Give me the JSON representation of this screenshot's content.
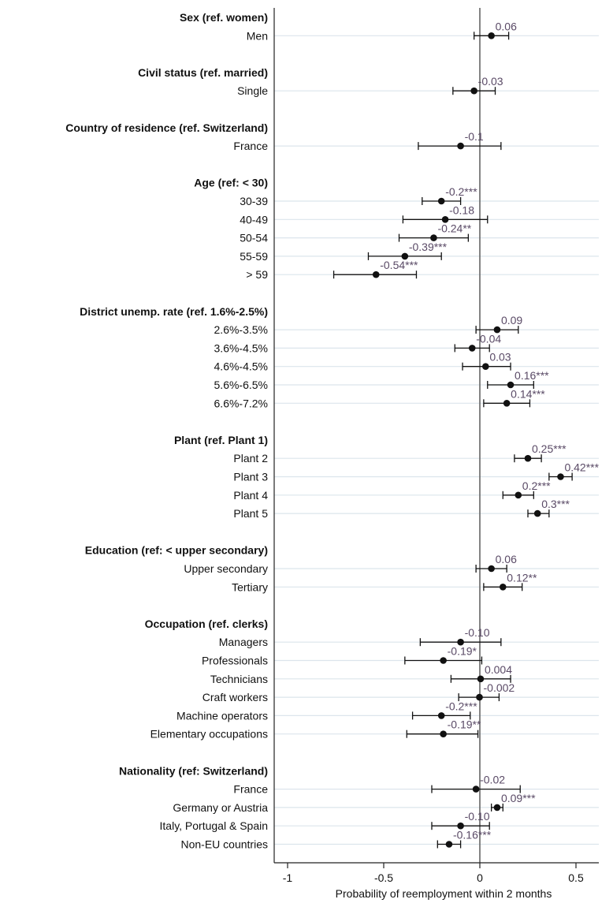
{
  "chart_data": {
    "type": "scatter",
    "subtype": "coefficient-plot-with-confidence-intervals",
    "title": "",
    "xlabel": "Probability of reemployment within 2 months",
    "ylabel": "",
    "xlim": [
      -1.1,
      0.57
    ],
    "xticks": [
      -1,
      -0.5,
      0,
      0.5
    ],
    "xtick_labels": [
      "-1",
      "-0.5",
      "0",
      "0.5"
    ],
    "reference_line_x": 0,
    "grid": "horizontal lines at each variable",
    "colors": {
      "point": "#111111",
      "value_label": "#5a4a66",
      "grid": "#dce5ec",
      "zero_line": "#666666"
    },
    "rows": [
      {
        "kind": "header",
        "label": "Sex (ref. women)"
      },
      {
        "kind": "var",
        "label": "Men",
        "value": 0.06,
        "lo": -0.03,
        "hi": 0.15,
        "text": "0.06"
      },
      {
        "kind": "gap"
      },
      {
        "kind": "header",
        "label": "Civil status (ref. married)"
      },
      {
        "kind": "var",
        "label": "Single",
        "value": -0.03,
        "lo": -0.14,
        "hi": 0.08,
        "text": "-0.03"
      },
      {
        "kind": "gap"
      },
      {
        "kind": "header",
        "label": "Country of residence (ref. Switzerland)"
      },
      {
        "kind": "var",
        "label": "France",
        "value": -0.1,
        "lo": -0.32,
        "hi": 0.11,
        "text": "-0.1"
      },
      {
        "kind": "gap"
      },
      {
        "kind": "header",
        "label": "Age (ref: < 30)"
      },
      {
        "kind": "var",
        "label": "30-39",
        "value": -0.2,
        "lo": -0.3,
        "hi": -0.1,
        "text": "-0.2***"
      },
      {
        "kind": "var",
        "label": "40-49",
        "value": -0.18,
        "lo": -0.4,
        "hi": 0.04,
        "text": "-0.18"
      },
      {
        "kind": "var",
        "label": "50-54",
        "value": -0.24,
        "lo": -0.42,
        "hi": -0.06,
        "text": "-0.24**"
      },
      {
        "kind": "var",
        "label": "55-59",
        "value": -0.39,
        "lo": -0.58,
        "hi": -0.2,
        "text": "-0.39***"
      },
      {
        "kind": "var",
        "label": "> 59",
        "value": -0.54,
        "lo": -0.76,
        "hi": -0.33,
        "text": "-0.54***"
      },
      {
        "kind": "gap"
      },
      {
        "kind": "header",
        "label": "District unemp. rate (ref. 1.6%-2.5%)"
      },
      {
        "kind": "var",
        "label": "2.6%-3.5%",
        "value": 0.09,
        "lo": -0.02,
        "hi": 0.2,
        "text": "0.09"
      },
      {
        "kind": "var",
        "label": "3.6%-4.5%",
        "value": -0.04,
        "lo": -0.13,
        "hi": 0.05,
        "text": "-0.04"
      },
      {
        "kind": "var",
        "label": "4.6%-4.5%",
        "value": 0.03,
        "lo": -0.09,
        "hi": 0.16,
        "text": "0.03"
      },
      {
        "kind": "var",
        "label": "5.6%-6.5%",
        "value": 0.16,
        "lo": 0.04,
        "hi": 0.28,
        "text": "0.16***"
      },
      {
        "kind": "var",
        "label": "6.6%-7.2%",
        "value": 0.14,
        "lo": 0.02,
        "hi": 0.26,
        "text": "0.14***"
      },
      {
        "kind": "gap"
      },
      {
        "kind": "header",
        "label": "Plant (ref. Plant 1)"
      },
      {
        "kind": "var",
        "label": "Plant 2",
        "value": 0.25,
        "lo": 0.18,
        "hi": 0.32,
        "text": "0.25***"
      },
      {
        "kind": "var",
        "label": "Plant 3",
        "value": 0.42,
        "lo": 0.36,
        "hi": 0.48,
        "text": "0.42***"
      },
      {
        "kind": "var",
        "label": "Plant 4",
        "value": 0.2,
        "lo": 0.12,
        "hi": 0.28,
        "text": "0.2***"
      },
      {
        "kind": "var",
        "label": "Plant 5",
        "value": 0.3,
        "lo": 0.25,
        "hi": 0.36,
        "text": "0.3***"
      },
      {
        "kind": "gap"
      },
      {
        "kind": "header",
        "label": "Education (ref: < upper secondary)"
      },
      {
        "kind": "var",
        "label": "Upper secondary",
        "value": 0.06,
        "lo": -0.02,
        "hi": 0.14,
        "text": "0.06"
      },
      {
        "kind": "var",
        "label": "Tertiary",
        "value": 0.12,
        "lo": 0.02,
        "hi": 0.22,
        "text": "0.12**"
      },
      {
        "kind": "gap"
      },
      {
        "kind": "header",
        "label": "Occupation (ref. clerks)"
      },
      {
        "kind": "var",
        "label": "Managers",
        "value": -0.1,
        "lo": -0.31,
        "hi": 0.11,
        "text": "-0.10"
      },
      {
        "kind": "var",
        "label": "Professionals",
        "value": -0.19,
        "lo": -0.39,
        "hi": 0.01,
        "text": "-0.19*"
      },
      {
        "kind": "var",
        "label": "Technicians",
        "value": 0.004,
        "lo": -0.15,
        "hi": 0.16,
        "text": "0.004"
      },
      {
        "kind": "var",
        "label": "Craft workers",
        "value": -0.002,
        "lo": -0.11,
        "hi": 0.1,
        "text": "-0.002"
      },
      {
        "kind": "var",
        "label": "Machine operators",
        "value": -0.2,
        "lo": -0.35,
        "hi": -0.05,
        "text": "-0.2***"
      },
      {
        "kind": "var",
        "label": "Elementary occupations",
        "value": -0.19,
        "lo": -0.38,
        "hi": -0.01,
        "text": "-0.19**"
      },
      {
        "kind": "gap"
      },
      {
        "kind": "header",
        "label": "Nationality (ref: Switzerland)"
      },
      {
        "kind": "var",
        "label": "France",
        "value": -0.02,
        "lo": -0.25,
        "hi": 0.21,
        "text": "-0.02"
      },
      {
        "kind": "var",
        "label": "Germany or Austria",
        "value": 0.09,
        "lo": 0.06,
        "hi": 0.12,
        "text": "0.09***"
      },
      {
        "kind": "var",
        "label": "Italy, Portugal & Spain",
        "value": -0.1,
        "lo": -0.25,
        "hi": 0.05,
        "text": "-0.10"
      },
      {
        "kind": "var",
        "label": "Non-EU countries",
        "value": -0.16,
        "lo": -0.22,
        "hi": -0.1,
        "text": "-0.16***"
      }
    ]
  }
}
